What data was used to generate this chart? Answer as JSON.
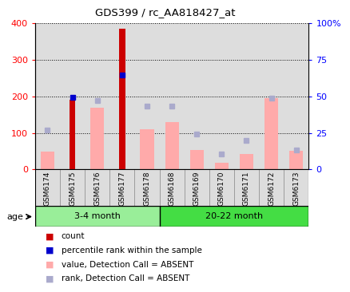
{
  "title": "GDS399 / rc_AA818427_at",
  "samples": [
    "GSM6174",
    "GSM6175",
    "GSM6176",
    "GSM6177",
    "GSM6178",
    "GSM6168",
    "GSM6169",
    "GSM6170",
    "GSM6171",
    "GSM6172",
    "GSM6173"
  ],
  "count_values": [
    null,
    190,
    null,
    385,
    null,
    null,
    null,
    null,
    null,
    null,
    null
  ],
  "percentile_rank_left": [
    null,
    198,
    null,
    258,
    null,
    null,
    null,
    null,
    null,
    null,
    null
  ],
  "absent_value": [
    48,
    null,
    170,
    null,
    110,
    130,
    52,
    18,
    43,
    195,
    50
  ],
  "absent_rank_left": [
    107,
    null,
    188,
    null,
    173,
    173,
    97,
    42,
    80,
    195,
    52
  ],
  "groups": [
    {
      "label": "3-4 month",
      "start": 0,
      "end": 5,
      "color": "#99ee99"
    },
    {
      "label": "20-22 month",
      "start": 5,
      "end": 11,
      "color": "#44dd44"
    }
  ],
  "ylim_left": [
    0,
    400
  ],
  "ylim_right": [
    0,
    100
  ],
  "yticks_left": [
    0,
    100,
    200,
    300,
    400
  ],
  "yticks_right": [
    0,
    25,
    50,
    75,
    100
  ],
  "yticklabels_right": [
    "0",
    "25",
    "50",
    "75",
    "100%"
  ],
  "count_color": "#cc0000",
  "percentile_color": "#0000cc",
  "absent_value_color": "#ffaaaa",
  "absent_rank_color": "#aaaacc",
  "cell_bg_color": "#dddddd",
  "plot_bg": "#ffffff"
}
